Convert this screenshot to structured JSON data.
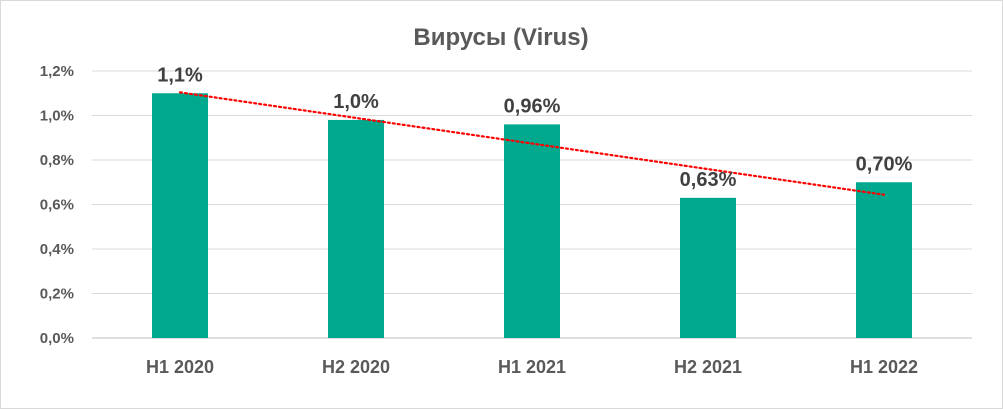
{
  "chart_data": {
    "type": "bar",
    "title": "Вирусы (Virus)",
    "categories": [
      "H1 2020",
      "H2 2020",
      "H1 2021",
      "H2 2021",
      "H1 2022"
    ],
    "values": [
      1.1,
      0.98,
      0.96,
      0.63,
      0.7
    ],
    "data_labels": [
      "1,1%",
      "1,0%",
      "0,96%",
      "0,63%",
      "0,70%"
    ],
    "ylim": [
      0,
      1.2
    ],
    "yticks": [
      0,
      0.2,
      0.4,
      0.6,
      0.8,
      1.0,
      1.2
    ],
    "ytick_labels": [
      "0,0%",
      "0,2%",
      "0,4%",
      "0,6%",
      "0,8%",
      "1,0%",
      "1,2%"
    ],
    "grid": true,
    "trendline": {
      "type": "linear",
      "style": "dotted",
      "color": "#ff0000"
    },
    "bar_color": "#00a88e"
  }
}
